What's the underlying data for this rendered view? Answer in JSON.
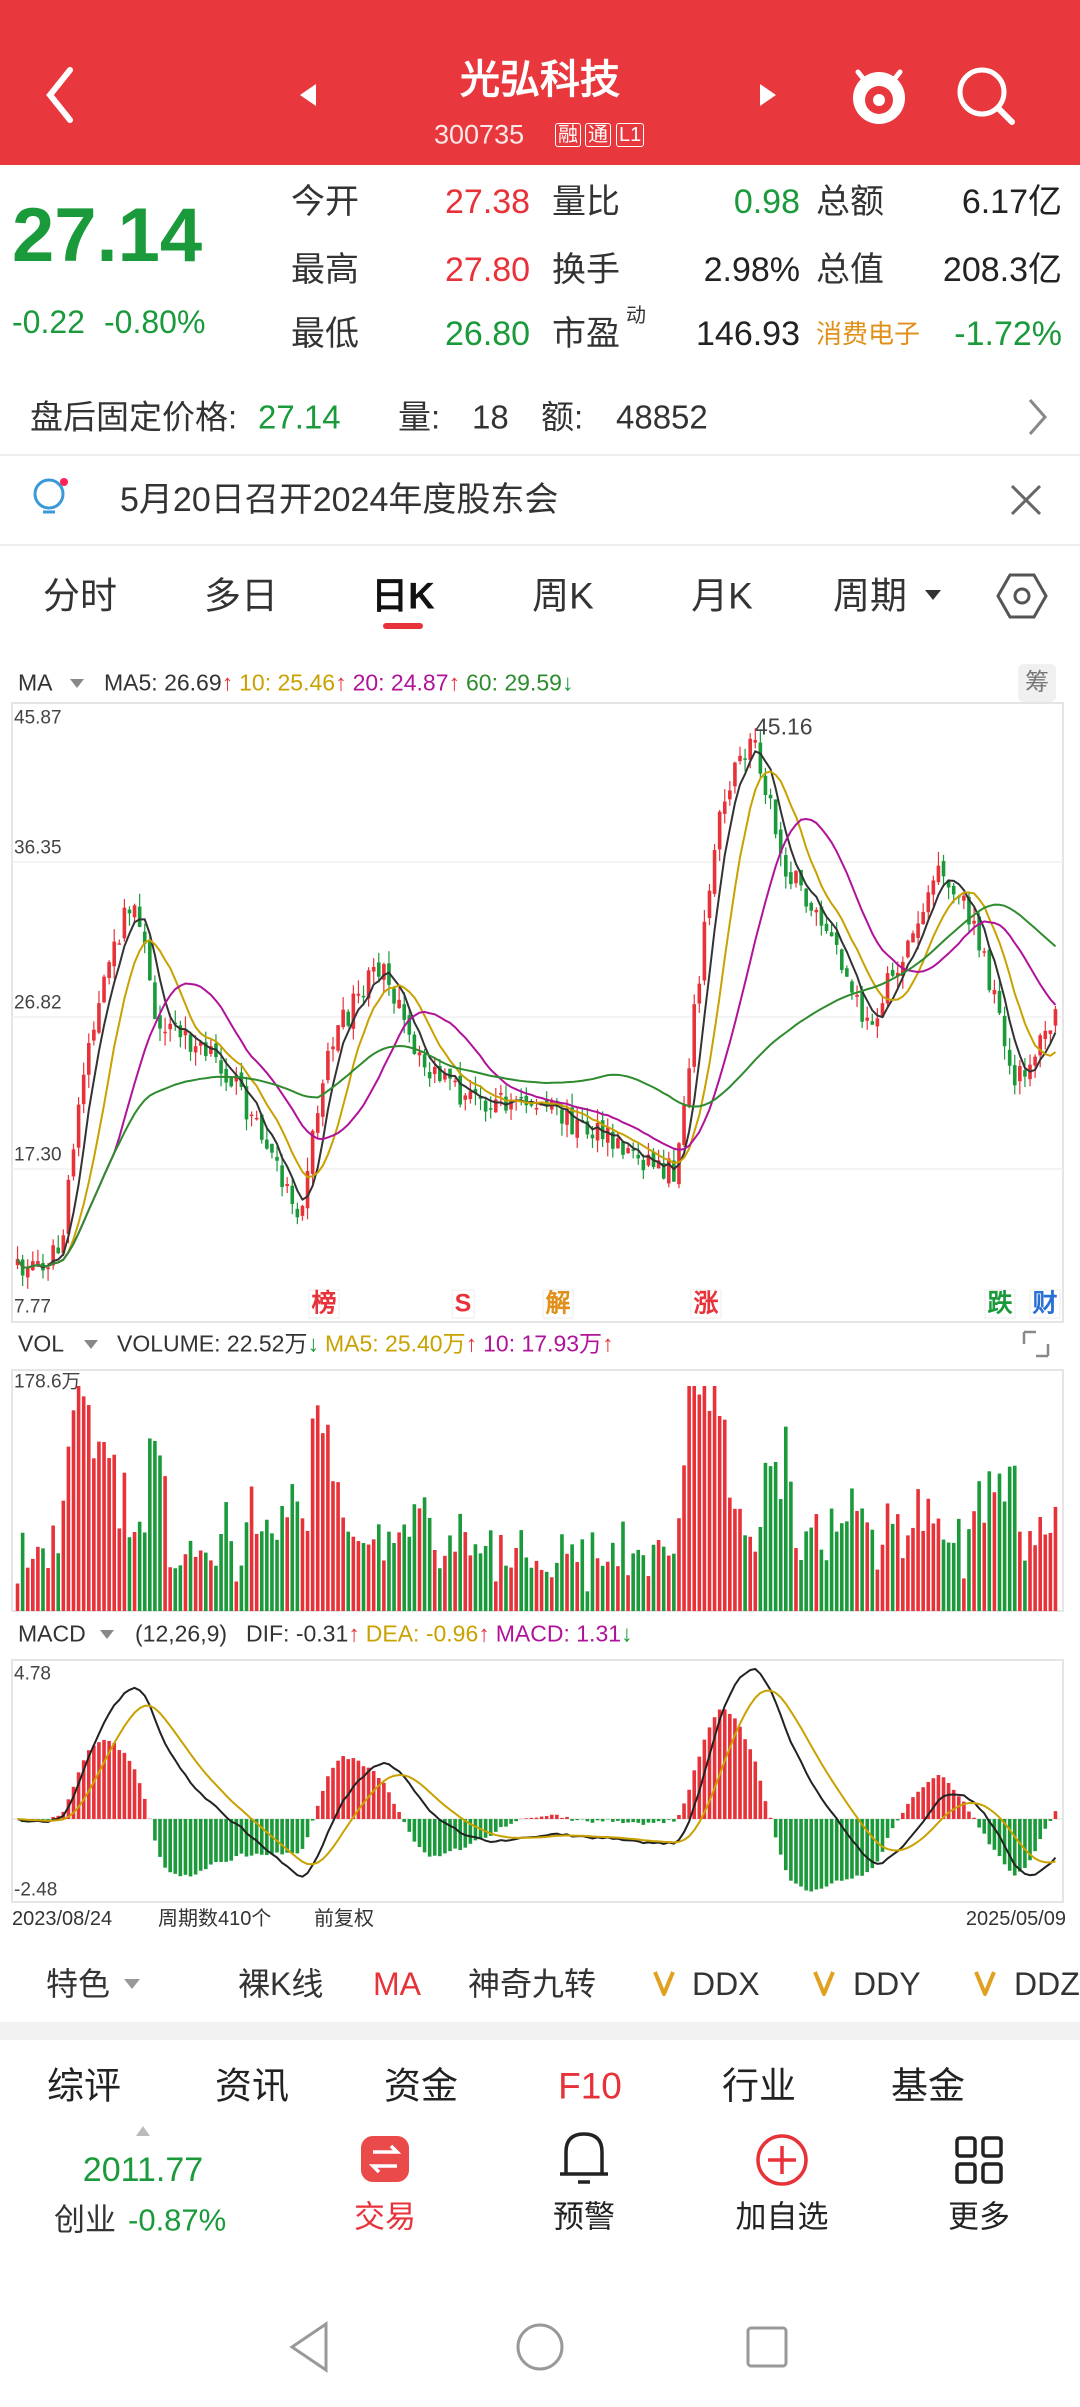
{
  "header": {
    "title": "光弘科技",
    "code": "300735",
    "badges": [
      "融",
      "通",
      "L1"
    ]
  },
  "quote": {
    "price": "27.14",
    "change": "-0.22",
    "change_pct": "-0.80%",
    "rows": [
      [
        {
          "label": "今开",
          "value": "27.38",
          "color": "#e8323a"
        },
        {
          "label": "量比",
          "value": "0.98",
          "color": "#1a9a3a"
        },
        {
          "label": "总额",
          "value": "6.17亿",
          "color": "#222222"
        }
      ],
      [
        {
          "label": "最高",
          "value": "27.80",
          "color": "#e8323a"
        },
        {
          "label": "换手",
          "value": "2.98%",
          "color": "#222222"
        },
        {
          "label": "总值",
          "value": "208.3亿",
          "color": "#222222"
        }
      ],
      [
        {
          "label": "最低",
          "value": "26.80",
          "color": "#1a9a3a"
        },
        {
          "label": "市盈",
          "sup": "动",
          "value": "146.93",
          "color": "#222222"
        },
        {
          "label": "消费电子",
          "value": "-1.72%",
          "color": "#1a9a3a"
        }
      ]
    ]
  },
  "after_hours": {
    "label": "盘后固定价格:",
    "price": "27.14",
    "volume_label": "量:",
    "volume": "18",
    "amount_label": "额:",
    "amount": "48852"
  },
  "notice": "5月20日召开2024年度股东会",
  "tabs": {
    "items": [
      "分时",
      "多日",
      "日K",
      "周K",
      "月K",
      "周期"
    ],
    "active": 2
  },
  "kline": {
    "selector": "MA",
    "legend": [
      {
        "text": "MA5: 26.69",
        "arrow": "↑",
        "color": "#333333"
      },
      {
        "text": "10: 25.46",
        "arrow": "↑",
        "color": "#c9a100"
      },
      {
        "text": "20: 24.87",
        "arrow": "↑",
        "color": "#b0139a"
      },
      {
        "text": "60: 29.59",
        "arrow": "↓",
        "color": "#2e8b2e"
      }
    ],
    "chip": "筹",
    "y_labels": [
      "45.87",
      "36.35",
      "26.82",
      "17.30",
      "7.77"
    ],
    "peak": "45.16",
    "markers": [
      {
        "label": "榜",
        "color": "#e8323a"
      },
      {
        "label": "S",
        "color": "#e8323a"
      },
      {
        "label": "解",
        "color": "#e0901a"
      },
      {
        "label": "涨",
        "color": "#e8323a"
      },
      {
        "label": "跌",
        "color": "#1a9a3a"
      },
      {
        "label": "财",
        "color": "#2a6fd6"
      }
    ]
  },
  "volume": {
    "selector": "VOL",
    "legend": [
      {
        "text": "VOLUME: 22.52万",
        "arrow": "↓",
        "color": "#333333"
      },
      {
        "text": "MA5: 25.40万",
        "arrow": "↑",
        "color": "#c9a100"
      },
      {
        "text": "10: 17.93万",
        "arrow": "↑",
        "color": "#b0139a"
      }
    ],
    "max_label": "178.6万"
  },
  "macd": {
    "selector": "MACD",
    "params": "(12,26,9)",
    "legend": [
      {
        "text": "DIF: -0.31",
        "arrow": "↑",
        "color": "#333333"
      },
      {
        "text": "DEA: -0.96",
        "arrow": "↑",
        "color": "#c9a100"
      },
      {
        "text": "MACD: 1.31",
        "arrow": "↓",
        "color": "#b0139a"
      }
    ],
    "max_label": "4.78",
    "min_label": "-2.48"
  },
  "footer_dates": {
    "start": "2023/08/24",
    "count": "周期数410个",
    "adjust": "前复权",
    "end": "2025/05/09"
  },
  "indicators": [
    "特色",
    "裸K线",
    "MA",
    "神奇九转",
    "DDX",
    "DDY",
    "DDZ"
  ],
  "bottom_tabs": {
    "items": [
      "综评",
      "资讯",
      "资金",
      "F10",
      "行业",
      "基金"
    ],
    "active": 3
  },
  "index": {
    "value": "2011.77",
    "name": "创业",
    "change": "-0.87%"
  },
  "actions": [
    "交易",
    "预警",
    "加自选",
    "更多"
  ]
}
